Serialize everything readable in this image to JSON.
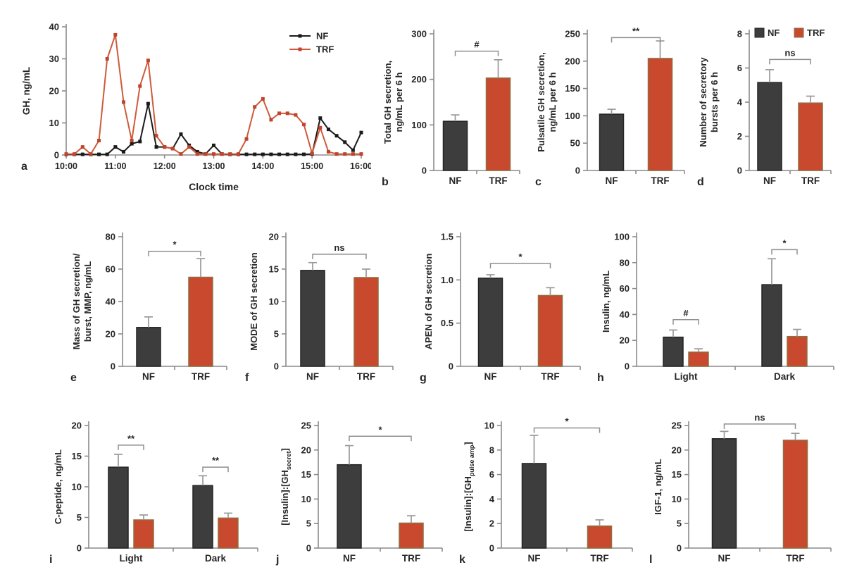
{
  "colors": {
    "nf": "#3d3d3d",
    "nf_border": "#242424",
    "trf": "#c8492e",
    "trf_border": "#8f6f42",
    "trf_line": "#cf5a3a",
    "trf_marker": "#c0432c",
    "nf_line": "#1a1a1a",
    "error": "#999999",
    "axis": "#8a8a8a",
    "bracket": "#8f8f8f",
    "text": "#262626"
  },
  "chart_data": [
    {
      "letter": "a",
      "type": "line",
      "ylabel": "GH, ng/mL",
      "xlabel": "Clock time",
      "ylim": [
        0,
        40
      ],
      "yticks": [
        0,
        10,
        20,
        30,
        40
      ],
      "x_range": [
        0,
        36
      ],
      "x_tick_positions": [
        0,
        6,
        12,
        18,
        24,
        30,
        36
      ],
      "x_tick_labels": [
        "10:00",
        "11:00",
        "12:00",
        "13:00",
        "14:00",
        "15:00",
        "16:00"
      ],
      "legend_position": "top-right",
      "series": [
        {
          "name": "NF",
          "color_key": "nf_line",
          "marker_key": "nf_line",
          "values": [
            0.2,
            0.2,
            0.2,
            0.2,
            0.2,
            0.2,
            2.5,
            1,
            3.5,
            4.2,
            16,
            2.5,
            2.5,
            2,
            6.5,
            3,
            1,
            0.3,
            3,
            0.3,
            0.2,
            0.2,
            0.2,
            0.2,
            0.2,
            0.2,
            0.2,
            0.2,
            0.2,
            0.2,
            0.3,
            11.5,
            8,
            6,
            4,
            1.5,
            7
          ]
        },
        {
          "name": "TRF",
          "color_key": "trf_line",
          "marker_key": "trf_marker",
          "values": [
            0.3,
            0.3,
            2.5,
            0.3,
            4.5,
            30,
            37.5,
            16.5,
            4.5,
            21.5,
            29.5,
            6,
            2.5,
            2,
            0.3,
            2.5,
            0.3,
            0.3,
            0.3,
            0.3,
            0.3,
            0.3,
            5,
            15,
            17.5,
            11,
            13,
            13,
            12.5,
            9.5,
            0.5,
            8.5,
            1,
            0.3,
            0.3,
            0.3,
            0.3
          ]
        }
      ]
    },
    {
      "letter": "b",
      "type": "bar",
      "ylabel_lines": [
        "Total GH secretion,",
        "ng/mL per 6 h"
      ],
      "ylim": [
        0,
        300
      ],
      "yticks": [
        0,
        100,
        200,
        300
      ],
      "groups": [
        {
          "label": "NF",
          "bars": [
            {
              "series": "NF",
              "value": 108,
              "error": 14
            }
          ]
        },
        {
          "label": "TRF",
          "bars": [
            {
              "series": "TRF",
              "value": 203,
              "error": 40
            }
          ]
        }
      ],
      "sig": [
        {
          "label": "#",
          "x1": 0,
          "x2": 1,
          "y": 262
        }
      ]
    },
    {
      "letter": "c",
      "type": "bar",
      "ylabel_lines": [
        "Pulsatile GH secretion,",
        "ng/mL per 6 h"
      ],
      "ylim": [
        0,
        250
      ],
      "yticks": [
        0,
        50,
        100,
        150,
        200,
        250
      ],
      "groups": [
        {
          "label": "NF",
          "bars": [
            {
              "series": "NF",
              "value": 103,
              "error": 9
            }
          ]
        },
        {
          "label": "TRF",
          "bars": [
            {
              "series": "TRF",
              "value": 205,
              "error": 32
            }
          ]
        }
      ],
      "sig": [
        {
          "label": "**",
          "x1": 0,
          "x2": 1,
          "y": 243
        }
      ]
    },
    {
      "letter": "d",
      "type": "bar",
      "ylabel_lines": [
        "Number of secretory",
        "bursts per 6 h"
      ],
      "ylim": [
        0,
        8
      ],
      "yticks": [
        0,
        2,
        4,
        6,
        8
      ],
      "legend": [
        "NF",
        "TRF"
      ],
      "groups": [
        {
          "label": "NF",
          "bars": [
            {
              "series": "NF",
              "value": 5.15,
              "error": 0.75
            }
          ]
        },
        {
          "label": "TRF",
          "bars": [
            {
              "series": "TRF",
              "value": 3.95,
              "error": 0.4
            }
          ]
        }
      ],
      "sig": [
        {
          "label": "ns",
          "x1": 0,
          "x2": 1,
          "y": 6.5
        }
      ]
    },
    {
      "letter": "e",
      "type": "bar",
      "ylabel_lines": [
        "Mass of GH secretion/",
        "burst, MMP, ng/mL"
      ],
      "ylim": [
        0,
        80
      ],
      "yticks": [
        0,
        20,
        40,
        60,
        80
      ],
      "groups": [
        {
          "label": "NF",
          "bars": [
            {
              "series": "NF",
              "value": 24,
              "error": 6.5
            }
          ]
        },
        {
          "label": "TRF",
          "bars": [
            {
              "series": "TRF",
              "value": 55,
              "error": 11.5
            }
          ]
        }
      ],
      "sig": [
        {
          "label": "*",
          "x1": 0,
          "x2": 1,
          "y": 71
        }
      ]
    },
    {
      "letter": "f",
      "type": "bar",
      "ylabel_lines": [
        "MODE of GH secretion"
      ],
      "ylim": [
        0,
        20
      ],
      "yticks": [
        0,
        5,
        10,
        15,
        20
      ],
      "groups": [
        {
          "label": "NF",
          "bars": [
            {
              "series": "NF",
              "value": 14.8,
              "error": 1.2
            }
          ]
        },
        {
          "label": "TRF",
          "bars": [
            {
              "series": "TRF",
              "value": 13.7,
              "error": 1.3
            }
          ]
        }
      ],
      "sig": [
        {
          "label": "ns",
          "x1": 0,
          "x2": 1,
          "y": 17.3
        }
      ]
    },
    {
      "letter": "g",
      "type": "bar",
      "ylabel_lines": [
        "APEN of GH secretion"
      ],
      "ylim": [
        0,
        1.5
      ],
      "yticks": [
        0,
        0.5,
        1.0,
        1.5
      ],
      "ytick_labels": [
        "0",
        "0.5",
        "1.0",
        "1.5"
      ],
      "groups": [
        {
          "label": "NF",
          "bars": [
            {
              "series": "NF",
              "value": 1.02,
              "error": 0.04
            }
          ]
        },
        {
          "label": "TRF",
          "bars": [
            {
              "series": "TRF",
              "value": 0.82,
              "error": 0.09
            }
          ]
        }
      ],
      "sig": [
        {
          "label": "*",
          "x1": 0,
          "x2": 1,
          "y": 1.19
        }
      ]
    },
    {
      "letter": "h",
      "type": "bar",
      "ylabel_lines": [
        "Insulin, ng/mL"
      ],
      "ylim": [
        0,
        100
      ],
      "yticks": [
        0,
        20,
        40,
        60,
        80,
        100
      ],
      "groups": [
        {
          "label": "Light",
          "bars": [
            {
              "series": "NF",
              "value": 22.5,
              "error": 5.5
            },
            {
              "series": "TRF",
              "value": 11,
              "error": 2.5
            }
          ]
        },
        {
          "label": "Dark",
          "bars": [
            {
              "series": "NF",
              "value": 63,
              "error": 20
            },
            {
              "series": "TRF",
              "value": 23,
              "error": 5.5
            }
          ]
        }
      ],
      "sig": [
        {
          "label": "#",
          "x1": 0,
          "x2": 1,
          "y": 36
        },
        {
          "label": "*",
          "x1": 2,
          "x2": 3,
          "y": 90
        }
      ]
    },
    {
      "letter": "i",
      "type": "bar",
      "ylabel_lines": [
        "C-peptide, ng/mL"
      ],
      "ylim": [
        0,
        20
      ],
      "yticks": [
        0,
        5,
        10,
        15,
        20
      ],
      "groups": [
        {
          "label": "Light",
          "bars": [
            {
              "series": "NF",
              "value": 13.2,
              "error": 2.1
            },
            {
              "series": "TRF",
              "value": 4.6,
              "error": 0.8
            }
          ]
        },
        {
          "label": "Dark",
          "bars": [
            {
              "series": "NF",
              "value": 10.2,
              "error": 1.6
            },
            {
              "series": "TRF",
              "value": 4.9,
              "error": 0.8
            }
          ]
        }
      ],
      "sig": [
        {
          "label": "**",
          "x1": 0,
          "x2": 1,
          "y": 16.8
        },
        {
          "label": "**",
          "x1": 2,
          "x2": 3,
          "y": 13.2
        }
      ]
    },
    {
      "letter": "j",
      "type": "bar",
      "ylabel_lines": [
        [
          {
            "t": "[Insulin]:[GH"
          },
          {
            "t": "secret",
            "sub": true
          },
          {
            "t": "]"
          }
        ]
      ],
      "ylim": [
        0,
        25
      ],
      "yticks": [
        0,
        5,
        10,
        15,
        20,
        25
      ],
      "groups": [
        {
          "label": "NF",
          "bars": [
            {
              "series": "NF",
              "value": 17,
              "error": 3.9
            }
          ]
        },
        {
          "label": "TRF",
          "bars": [
            {
              "series": "TRF",
              "value": 5.1,
              "error": 1.5
            }
          ]
        }
      ],
      "sig": [
        {
          "label": "*",
          "x1": 0,
          "x2": 1,
          "y": 22.8
        }
      ]
    },
    {
      "letter": "k",
      "type": "bar",
      "ylabel_lines": [
        [
          {
            "t": "[Insulin]:[GH"
          },
          {
            "t": "pulse amp",
            "sub": true
          },
          {
            "t": "]"
          }
        ]
      ],
      "ylim": [
        0,
        10
      ],
      "yticks": [
        0,
        2,
        4,
        6,
        8,
        10
      ],
      "groups": [
        {
          "label": "NF",
          "bars": [
            {
              "series": "NF",
              "value": 6.9,
              "error": 2.3
            }
          ]
        },
        {
          "label": "TRF",
          "bars": [
            {
              "series": "TRF",
              "value": 1.8,
              "error": 0.5
            }
          ]
        }
      ],
      "sig": [
        {
          "label": "*",
          "x1": 0,
          "x2": 1,
          "y": 9.8
        }
      ]
    },
    {
      "letter": "l",
      "type": "bar",
      "ylabel_lines": [
        "IGF-1, ng/mL"
      ],
      "ylim": [
        0,
        25
      ],
      "yticks": [
        0,
        5,
        10,
        15,
        20,
        25
      ],
      "groups": [
        {
          "label": "NF",
          "bars": [
            {
              "series": "NF",
              "value": 22.3,
              "error": 1.5
            }
          ]
        },
        {
          "label": "TRF",
          "bars": [
            {
              "series": "TRF",
              "value": 22,
              "error": 1.4
            }
          ]
        }
      ],
      "sig": [
        {
          "label": "ns",
          "x1": 0,
          "x2": 1,
          "y": 25.3
        }
      ]
    }
  ]
}
